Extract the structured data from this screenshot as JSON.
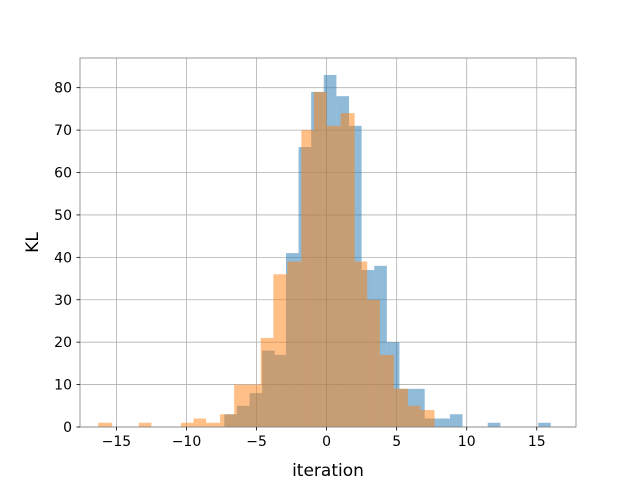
{
  "chart_data": {
    "type": "histogram",
    "title": "",
    "xlabel": "iteration",
    "ylabel": "KL",
    "xlim": [
      -17.6,
      17.8
    ],
    "ylim": [
      0,
      87
    ],
    "xticks": [
      -15,
      -10,
      -5,
      0,
      5,
      10,
      15
    ],
    "xtick_labels": [
      "−15",
      "−10",
      "−5",
      "0",
      "5",
      "10",
      "15"
    ],
    "yticks": [
      0,
      10,
      20,
      30,
      40,
      50,
      60,
      70,
      80
    ],
    "ytick_labels": [
      "0",
      "10",
      "20",
      "30",
      "40",
      "50",
      "60",
      "70",
      "80"
    ],
    "grid": true,
    "legend": "none",
    "series": [
      {
        "color": "#1f77b4",
        "opacity": 0.5,
        "bins": [
          {
            "x0": -7.3,
            "x1": -6.4,
            "y": 3
          },
          {
            "x0": -6.4,
            "x1": -5.5,
            "y": 5
          },
          {
            "x0": -5.5,
            "x1": -4.6,
            "y": 8
          },
          {
            "x0": -4.6,
            "x1": -3.7,
            "y": 18
          },
          {
            "x0": -3.7,
            "x1": -2.9,
            "y": 17
          },
          {
            "x0": -2.9,
            "x1": -2.0,
            "y": 41
          },
          {
            "x0": -2.0,
            "x1": -1.1,
            "y": 66
          },
          {
            "x0": -1.1,
            "x1": -0.2,
            "y": 79
          },
          {
            "x0": -0.2,
            "x1": 0.7,
            "y": 83
          },
          {
            "x0": 0.7,
            "x1": 1.6,
            "y": 78
          },
          {
            "x0": 1.6,
            "x1": 2.5,
            "y": 71
          },
          {
            "x0": 2.5,
            "x1": 3.4,
            "y": 37
          },
          {
            "x0": 3.4,
            "x1": 4.3,
            "y": 38
          },
          {
            "x0": 4.3,
            "x1": 5.2,
            "y": 20
          },
          {
            "x0": 5.2,
            "x1": 6.1,
            "y": 9
          },
          {
            "x0": 6.1,
            "x1": 7.0,
            "y": 9
          },
          {
            "x0": 7.0,
            "x1": 7.9,
            "y": 2
          },
          {
            "x0": 7.9,
            "x1": 8.8,
            "y": 2
          },
          {
            "x0": 8.8,
            "x1": 9.7,
            "y": 3
          },
          {
            "x0": 11.5,
            "x1": 12.4,
            "y": 1
          },
          {
            "x0": 15.1,
            "x1": 16.0,
            "y": 1
          }
        ]
      },
      {
        "color": "#ff7f0e",
        "opacity": 0.5,
        "bins": [
          {
            "x0": -16.3,
            "x1": -15.3,
            "y": 1
          },
          {
            "x0": -13.4,
            "x1": -12.5,
            "y": 1
          },
          {
            "x0": -10.4,
            "x1": -9.5,
            "y": 1
          },
          {
            "x0": -9.5,
            "x1": -8.6,
            "y": 2
          },
          {
            "x0": -8.6,
            "x1": -7.6,
            "y": 1
          },
          {
            "x0": -7.6,
            "x1": -6.6,
            "y": 3
          },
          {
            "x0": -6.6,
            "x1": -5.6,
            "y": 10
          },
          {
            "x0": -5.6,
            "x1": -4.7,
            "y": 10
          },
          {
            "x0": -4.7,
            "x1": -3.8,
            "y": 21
          },
          {
            "x0": -3.8,
            "x1": -2.8,
            "y": 36
          },
          {
            "x0": -2.8,
            "x1": -1.8,
            "y": 39
          },
          {
            "x0": -1.8,
            "x1": -0.9,
            "y": 70
          },
          {
            "x0": -0.9,
            "x1": 0.0,
            "y": 79
          },
          {
            "x0": 0.0,
            "x1": 1.0,
            "y": 71
          },
          {
            "x0": 1.0,
            "x1": 2.0,
            "y": 74
          },
          {
            "x0": 2.0,
            "x1": 2.9,
            "y": 39
          },
          {
            "x0": 2.9,
            "x1": 3.8,
            "y": 30
          },
          {
            "x0": 3.8,
            "x1": 4.8,
            "y": 17
          },
          {
            "x0": 4.8,
            "x1": 5.8,
            "y": 9
          },
          {
            "x0": 5.8,
            "x1": 6.7,
            "y": 5
          },
          {
            "x0": 6.7,
            "x1": 7.7,
            "y": 4
          }
        ]
      }
    ]
  }
}
